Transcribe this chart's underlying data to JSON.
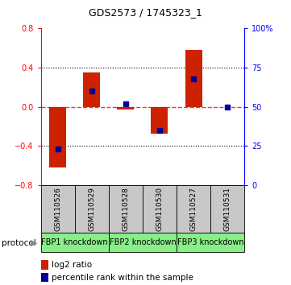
{
  "title": "GDS2573 / 1745323_1",
  "samples": [
    "GSM110526",
    "GSM110529",
    "GSM110528",
    "GSM110530",
    "GSM110527",
    "GSM110531"
  ],
  "log2_ratio": [
    -0.62,
    0.35,
    -0.03,
    -0.27,
    0.58,
    0.0
  ],
  "percentile_rank": [
    23,
    60,
    52,
    35,
    68,
    50
  ],
  "protocol_groups": [
    {
      "label": "FBP1 knockdown",
      "start": 0,
      "end": 1
    },
    {
      "label": "FBP2 knockdown",
      "start": 2,
      "end": 3
    },
    {
      "label": "FBP3 knockdown",
      "start": 4,
      "end": 5
    }
  ],
  "ylim_left": [
    -0.8,
    0.8
  ],
  "ylim_right": [
    0,
    100
  ],
  "bar_color": "#CC2200",
  "dot_color": "#000099",
  "zero_line_color": "#FF3333",
  "bg_color": "#ffffff",
  "sample_box_color": "#C8C8C8",
  "protocol_box_color": "#88EE88",
  "legend_log2_color": "#CC2200",
  "legend_pct_color": "#000099",
  "bar_width": 0.5,
  "title_fontsize": 9,
  "tick_fontsize": 7,
  "sample_fontsize": 6.5,
  "proto_fontsize": 7,
  "legend_fontsize": 7.5
}
